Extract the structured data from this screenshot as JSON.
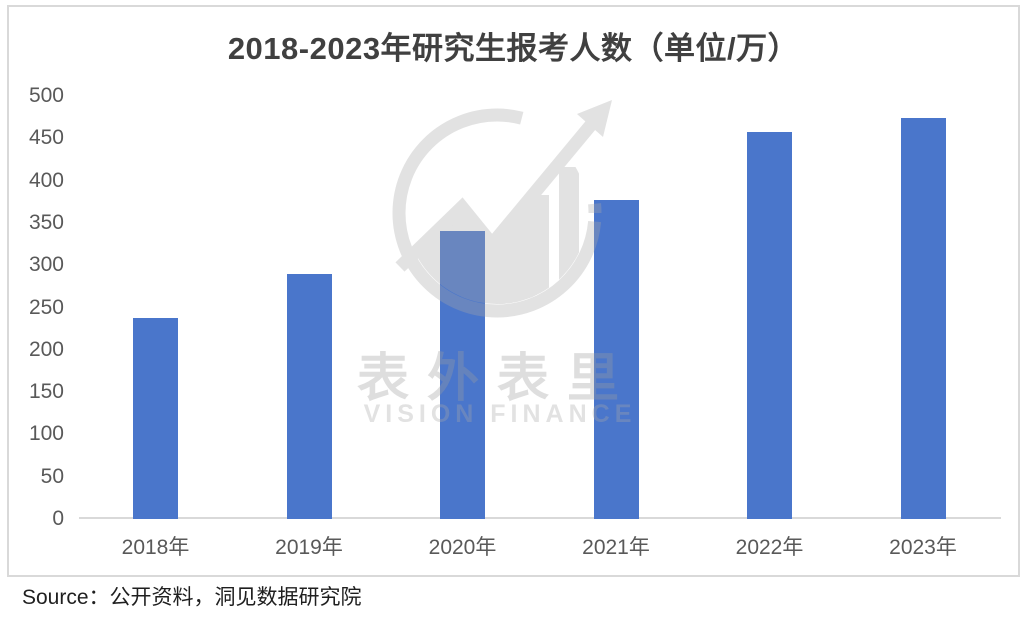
{
  "chart_data": {
    "type": "bar",
    "title": "2018-2023年研究生报考人数（单位/万）",
    "categories": [
      "2018年",
      "2019年",
      "2020年",
      "2021年",
      "2022年",
      "2023年"
    ],
    "values": [
      238,
      290,
      341,
      377,
      457,
      474
    ],
    "xlabel": "",
    "ylabel": "",
    "ylim": [
      0,
      500
    ],
    "yticks": [
      0,
      50,
      100,
      150,
      200,
      250,
      300,
      350,
      400,
      450,
      500
    ],
    "grid": false,
    "legend": "none",
    "bar_color": "#4a76cb",
    "title_color": "#404040",
    "tick_color": "#595959",
    "axis_line_color": "#d9d9d9"
  },
  "watermark": {
    "cjk_text": "表外表里",
    "latin_text": "VISION FINANCE"
  },
  "source": {
    "label": "Source：公开资料，洞见数据研究院"
  }
}
